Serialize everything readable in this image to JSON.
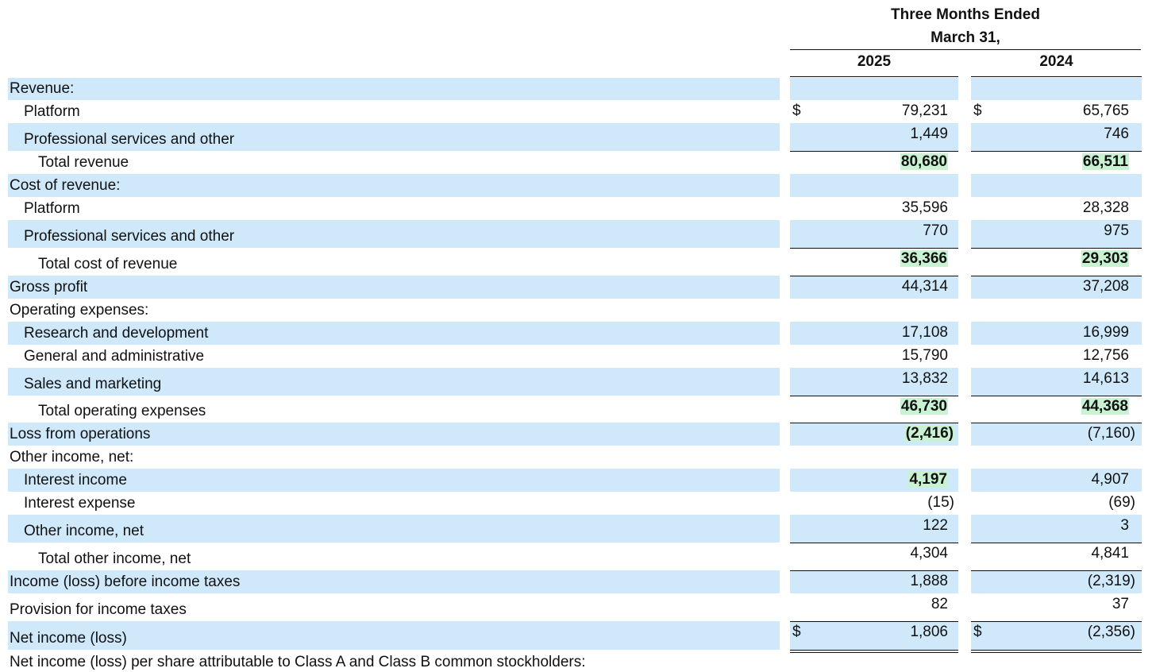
{
  "header": {
    "period_line1": "Three Months Ended",
    "period_line2": "March 31,",
    "year_current": "2025",
    "year_prior": "2024"
  },
  "currency_symbol": "$",
  "rows": [
    {
      "label": "Revenue:",
      "v2025": "",
      "v2024": ""
    },
    {
      "label": "Platform",
      "v2025": "79,231",
      "v2024": "65,765"
    },
    {
      "label": "Professional services and other",
      "v2025": "1,449",
      "v2024": "746"
    },
    {
      "label": "Total revenue",
      "v2025": "80,680",
      "v2024": "66,511"
    },
    {
      "label": "Cost of revenue:",
      "v2025": "",
      "v2024": ""
    },
    {
      "label": "Platform",
      "v2025": "35,596",
      "v2024": "28,328"
    },
    {
      "label": "Professional services and other",
      "v2025": "770",
      "v2024": "975"
    },
    {
      "label": "Total cost of revenue",
      "v2025": "36,366",
      "v2024": "29,303"
    },
    {
      "label": "Gross profit",
      "v2025": "44,314",
      "v2024": "37,208"
    },
    {
      "label": "Operating expenses:",
      "v2025": "",
      "v2024": ""
    },
    {
      "label": "Research and development",
      "v2025": "17,108",
      "v2024": "16,999"
    },
    {
      "label": "General and administrative",
      "v2025": "15,790",
      "v2024": "12,756"
    },
    {
      "label": "Sales and marketing",
      "v2025": "13,832",
      "v2024": "14,613"
    },
    {
      "label": "Total operating expenses",
      "v2025": "46,730",
      "v2024": "44,368"
    },
    {
      "label": "Loss from operations",
      "v2025": "(2,416)",
      "v2024": "(7,160)"
    },
    {
      "label": "Other income, net:",
      "v2025": "",
      "v2024": ""
    },
    {
      "label": "Interest income",
      "v2025": "4,197",
      "v2024": "4,907"
    },
    {
      "label": "Interest expense",
      "v2025": "(15)",
      "v2024": "(69)"
    },
    {
      "label": "Other income, net",
      "v2025": "122",
      "v2024": "3"
    },
    {
      "label": "Total other income, net",
      "v2025": "4,304",
      "v2024": "4,841"
    },
    {
      "label": "Income (loss) before income taxes",
      "v2025": "1,888",
      "v2024": "(2,319)"
    },
    {
      "label": "Provision for income taxes",
      "v2025": "82",
      "v2024": "37"
    },
    {
      "label": "Net income (loss)",
      "v2025": "1,806",
      "v2024": "(2,356)"
    },
    {
      "label": "Net income (loss) per share attributable to Class A and Class B common stockholders:",
      "v2025": "",
      "v2024": ""
    }
  ]
}
